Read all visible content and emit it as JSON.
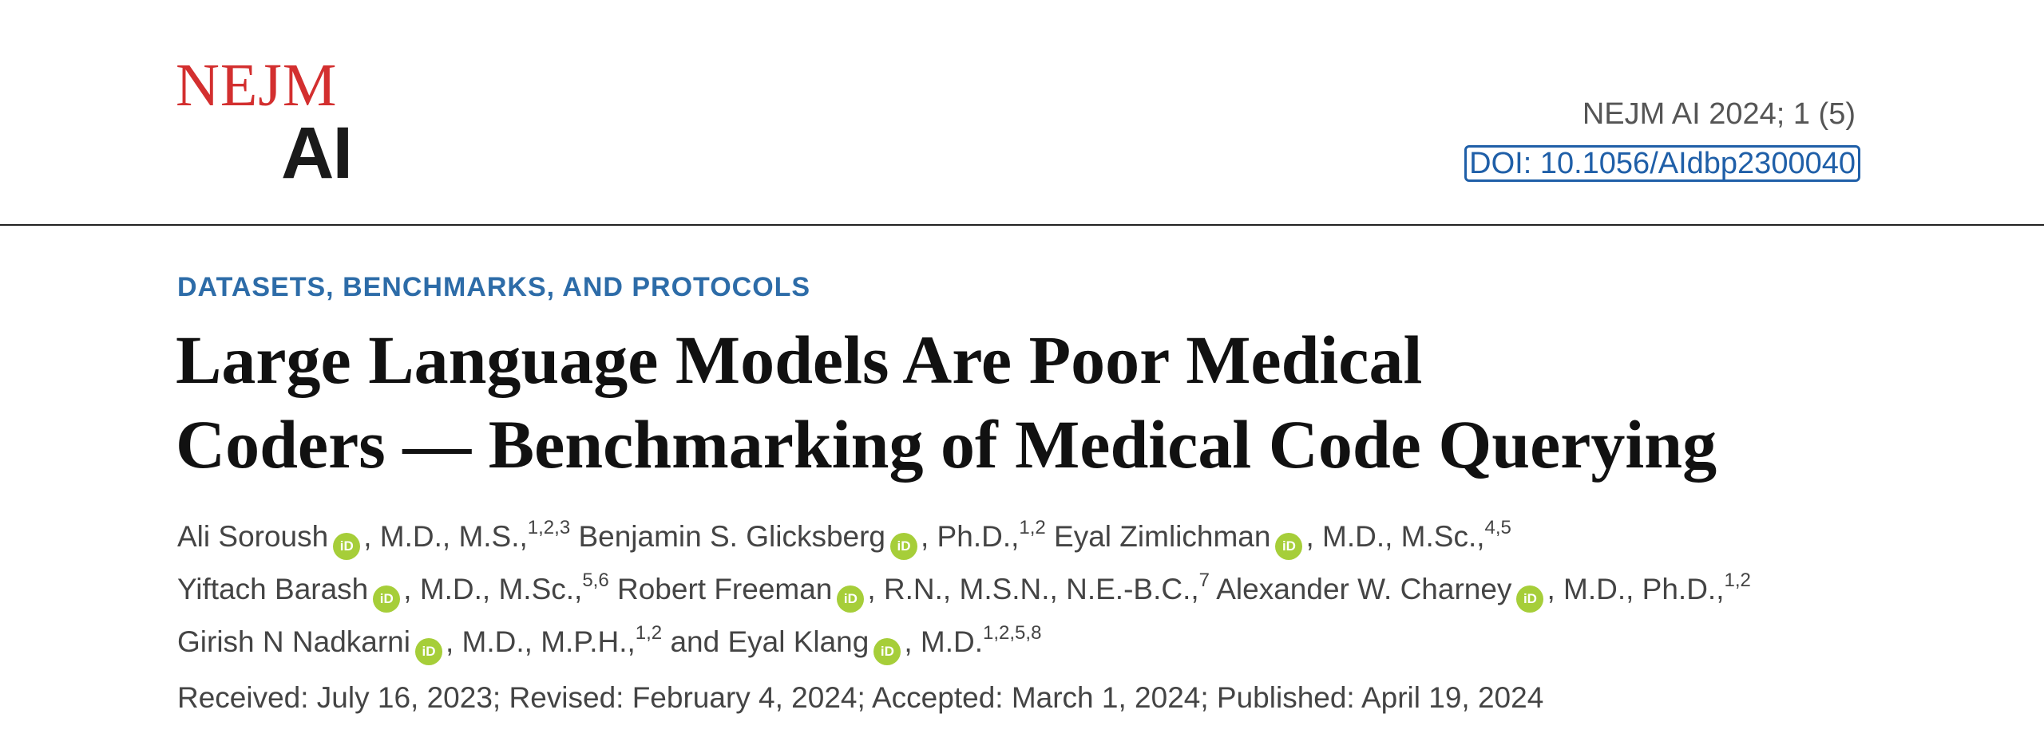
{
  "logo": {
    "nejm": "NEJM",
    "ai": "AI"
  },
  "journal": {
    "citation": "NEJM AI 2024; 1 (5)",
    "doi": "DOI: 10.1056/AIdbp2300040"
  },
  "article": {
    "section": "DATASETS, BENCHMARKS, AND PROTOCOLS",
    "title_line1": "Large Language Models Are Poor Medical",
    "title_line2": "Coders — Benchmarking of Medical Code Querying"
  },
  "authors": [
    {
      "name": "Ali Soroush",
      "degrees": ", M.D., M.S.,",
      "aff": "1,2,3"
    },
    {
      "name": "Benjamin S. Glicksberg",
      "degrees": ", Ph.D.,",
      "aff": "1,2"
    },
    {
      "name": "Eyal Zimlichman",
      "degrees": ", M.D., M.Sc.,",
      "aff": "4,5"
    },
    {
      "name": "Yiftach Barash",
      "degrees": ", M.D., M.Sc.,",
      "aff": "5,6"
    },
    {
      "name": "Robert Freeman",
      "degrees": ", R.N., M.S.N., N.E.-B.C.,",
      "aff": "7"
    },
    {
      "name": "Alexander W. Charney",
      "degrees": ", M.D., Ph.D.,",
      "aff": "1,2"
    },
    {
      "name": "Girish N Nadkarni",
      "degrees": ", M.D., M.P.H.,",
      "aff": "1,2"
    },
    {
      "name": "and Eyal Klang",
      "degrees": ", M.D.",
      "aff": "1,2,5,8"
    }
  ],
  "orcid_icon": "orcid-icon",
  "orcid_color": "#a6ce39",
  "accent_color": "#2d6ca8",
  "logo_red": "#d32f2f",
  "dates": "Received: July 16, 2023; Revised: February 4, 2024; Accepted: March 1, 2024; Published: April 19, 2024"
}
